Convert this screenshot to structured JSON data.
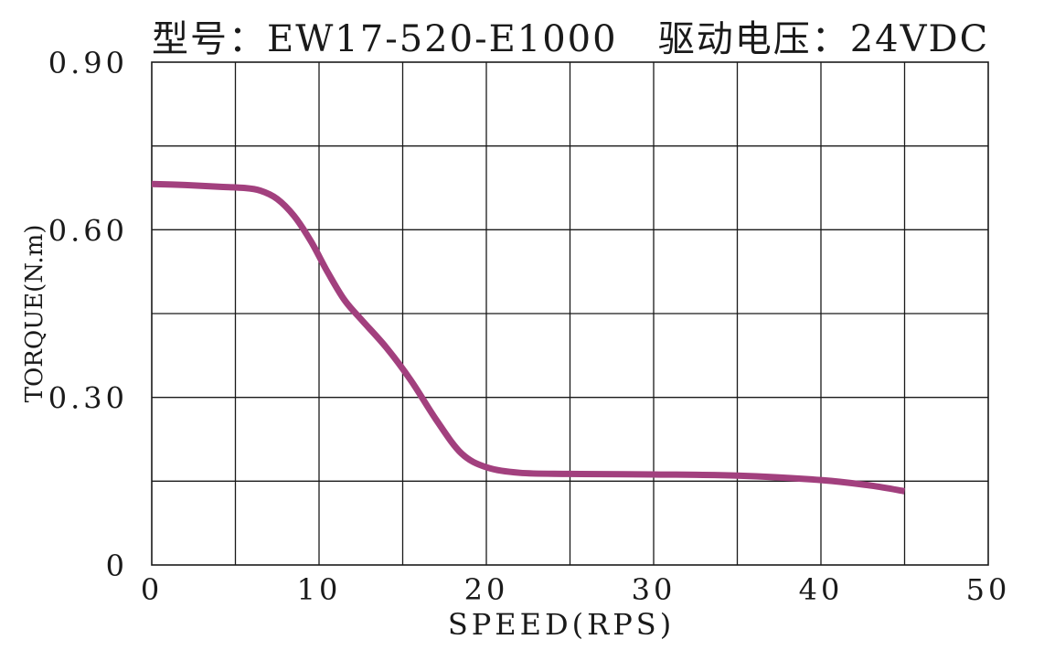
{
  "chart_data": {
    "type": "line",
    "title": "型号：EW17-520-E1000   驱动电压：24VDC",
    "xlabel": "SPEED(RPS)",
    "ylabel": "TORQUE(N.m)",
    "xlim": [
      0,
      50
    ],
    "ylim": [
      0,
      0.9
    ],
    "x_ticks": [
      "0",
      "10",
      "20",
      "30",
      "40",
      "50"
    ],
    "y_ticks": [
      "0",
      "0.30",
      "0.60",
      "0.90"
    ],
    "grid": true,
    "series": [
      {
        "color": "#a2407e",
        "x": [
          0,
          2,
          4,
          5.5,
          6.5,
          7.5,
          8.5,
          9.5,
          10.5,
          11.5,
          12.5,
          14,
          15.5,
          17,
          18.5,
          20,
          22,
          25,
          30,
          35,
          40,
          43,
          45
        ],
        "y": [
          0.682,
          0.68,
          0.677,
          0.675,
          0.67,
          0.655,
          0.625,
          0.58,
          0.525,
          0.475,
          0.44,
          0.39,
          0.33,
          0.26,
          0.2,
          0.175,
          0.165,
          0.163,
          0.162,
          0.16,
          0.152,
          0.142,
          0.132
        ]
      }
    ]
  }
}
